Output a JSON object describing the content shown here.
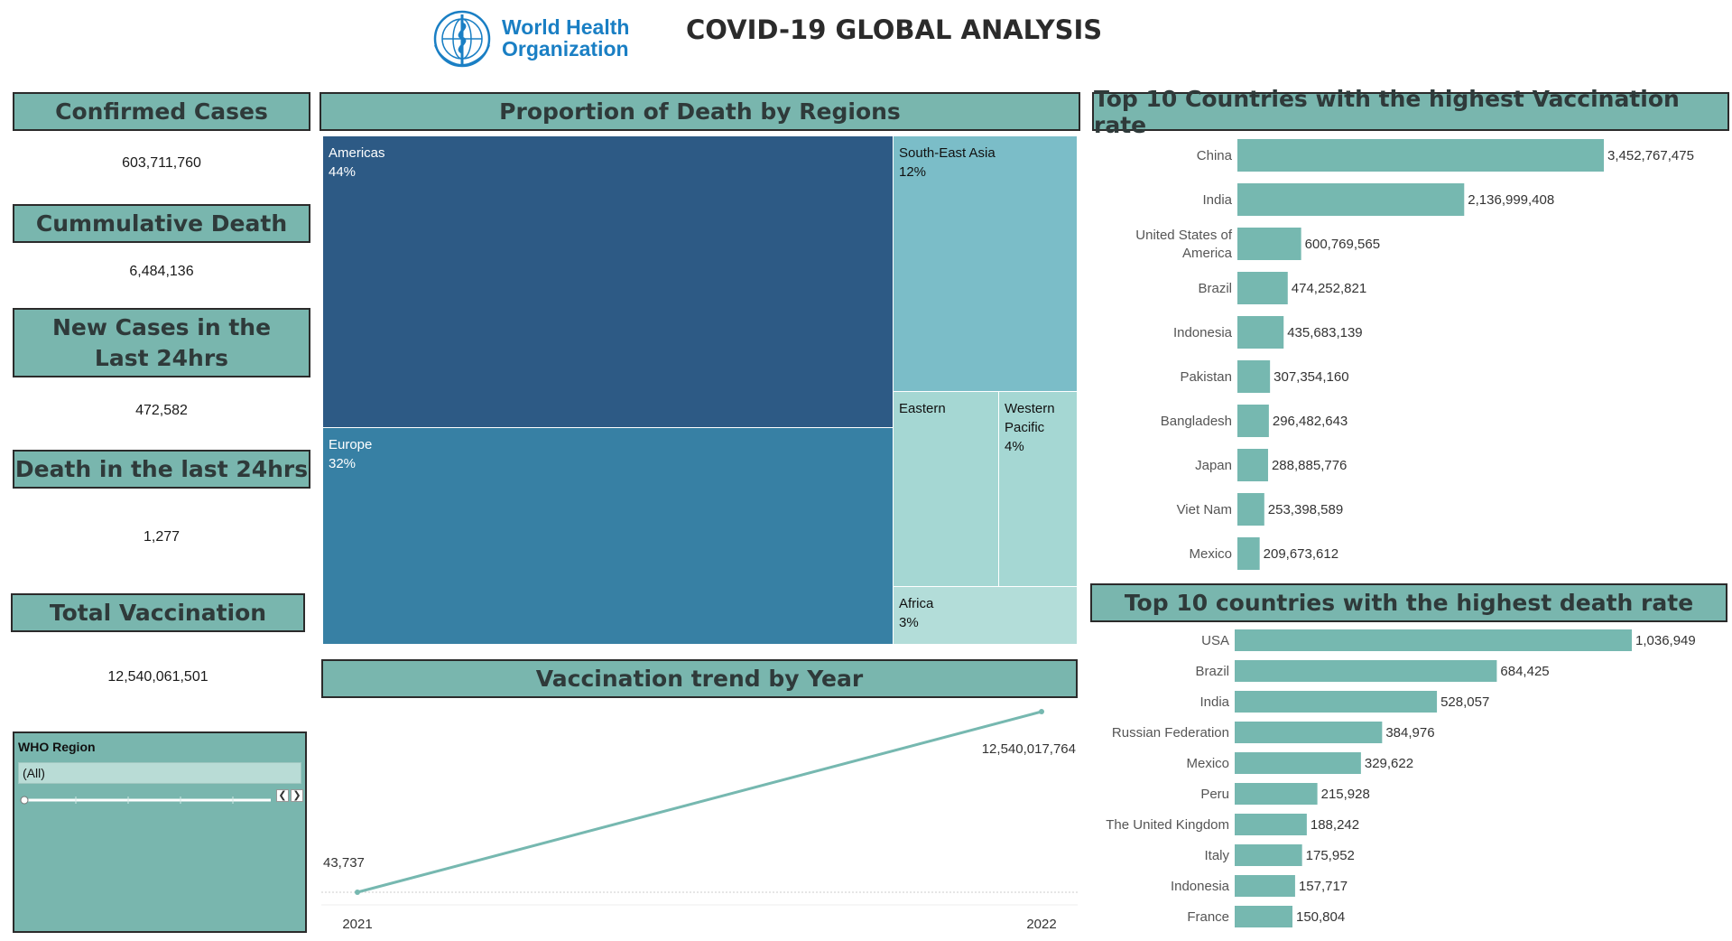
{
  "header": {
    "logo_line1": "World Health",
    "logo_line2": "Organization",
    "title": "COVID-19 GLOBAL ANALYSIS"
  },
  "colors": {
    "header_fill": "#79b6ae",
    "bar": "#76b8b0",
    "americas": "#2d5a85",
    "europe": "#3780a4",
    "sea": "#7bbdc8",
    "light": "#a5d7d3"
  },
  "kpis": [
    {
      "label": "Confirmed Cases",
      "value": "603,711,760"
    },
    {
      "label": "Cummulative Death",
      "value": "6,484,136"
    },
    {
      "label": "New Cases in the Last 24hrs",
      "value": "472,582"
    },
    {
      "label": "Death in the last 24hrs",
      "value": "1,277"
    },
    {
      "label": "Total Vaccination",
      "value": "12,540,061,501"
    }
  ],
  "filter": {
    "title": "WHO Region",
    "selected": "(All)",
    "prev_icon": "chevron-left-icon",
    "next_icon": "chevron-right-icon"
  },
  "chart_data": [
    {
      "type": "treemap",
      "title": "Proportion of Death by Regions",
      "items": [
        {
          "name": "Americas",
          "label": "44%",
          "value": 44
        },
        {
          "name": "Europe",
          "label": "32%",
          "value": 32
        },
        {
          "name": "South-East Asia",
          "label": "12%",
          "value": 12
        },
        {
          "name": "Eastern",
          "label": "",
          "value": 5
        },
        {
          "name": "Western Pacific",
          "label": "4%",
          "value": 4
        },
        {
          "name": "Africa",
          "label": "3%",
          "value": 3
        }
      ]
    },
    {
      "type": "line",
      "title": "Vaccination trend by Year",
      "x": [
        "2021",
        "2022"
      ],
      "values": [
        43737,
        12540017764
      ],
      "value_labels": [
        "43,737",
        "12,540,017,764"
      ]
    },
    {
      "type": "bar",
      "orientation": "horizontal",
      "title": "Top 10 Countries with the highest Vaccination rate",
      "categories": [
        "China",
        "India",
        "United States of America",
        "Brazil",
        "Indonesia",
        "Pakistan",
        "Bangladesh",
        "Japan",
        "Viet Nam",
        "Mexico"
      ],
      "values": [
        3452767475,
        2136999408,
        600769565,
        474252821,
        435683139,
        307354160,
        296482643,
        288885776,
        253398589,
        209673612
      ],
      "value_labels": [
        "3,452,767,475",
        "2,136,999,408",
        "600,769,565",
        "474,252,821",
        "435,683,139",
        "307,354,160",
        "296,482,643",
        "288,885,776",
        "253,398,589",
        "209,673,612"
      ]
    },
    {
      "type": "bar",
      "orientation": "horizontal",
      "title": "Top 10 countries with the highest death rate",
      "categories": [
        "USA",
        "Brazil",
        "India",
        "Russian Federation",
        "Mexico",
        "Peru",
        "The United Kingdom",
        "Italy",
        "Indonesia",
        "France"
      ],
      "values": [
        1036949,
        684425,
        528057,
        384976,
        329622,
        215928,
        188242,
        175952,
        157717,
        150804
      ],
      "value_labels": [
        "1,036,949",
        "684,425",
        "528,057",
        "384,976",
        "329,622",
        "215,928",
        "188,242",
        "175,952",
        "157,717",
        "150,804"
      ]
    }
  ]
}
